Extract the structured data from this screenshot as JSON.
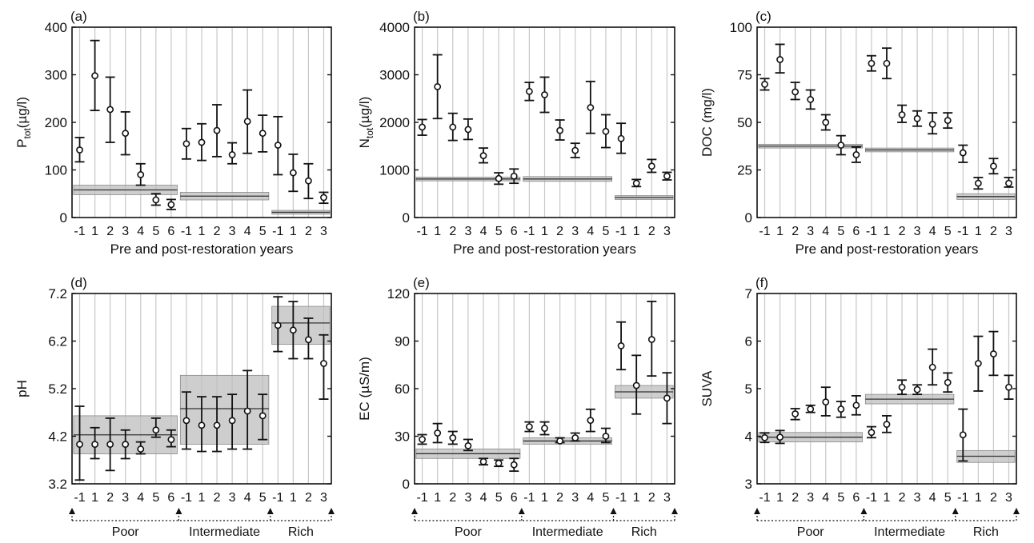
{
  "figure": {
    "groups": [
      "Poor",
      "Intermediate",
      "Rich"
    ],
    "xlabel": "Pre and post-restoration years"
  },
  "chart_data": [
    {
      "panel": "(a)",
      "type": "scatter",
      "ylabel": "P",
      "ylabel_sub": "tot",
      "ylabel_unit": "(µg/l)",
      "xlabel": "Pre and post-restoration years",
      "ylim": [
        0,
        400
      ],
      "yticks": [
        0,
        100,
        200,
        300,
        400
      ],
      "x_categories": [
        "-1",
        "1",
        "2",
        "3",
        "4",
        "5",
        "6",
        "-1",
        "1",
        "2",
        "3",
        "4",
        "5",
        "-1",
        "1",
        "2",
        "3"
      ],
      "values": [
        142,
        298,
        227,
        177,
        90,
        37,
        27,
        155,
        158,
        183,
        132,
        202,
        177,
        152,
        94,
        77,
        42
      ],
      "err_low": [
        117,
        225,
        158,
        132,
        68,
        26,
        17,
        123,
        120,
        128,
        113,
        135,
        138,
        90,
        55,
        40,
        30
      ],
      "err_high": [
        168,
        372,
        295,
        222,
        113,
        50,
        38,
        187,
        197,
        237,
        157,
        268,
        215,
        212,
        133,
        113,
        53
      ],
      "reference_bands": [
        {
          "group": "Poor",
          "mean": 58,
          "low": 48,
          "high": 68
        },
        {
          "group": "Intermediate",
          "mean": 45,
          "low": 37,
          "high": 53
        },
        {
          "group": "Rich",
          "mean": 11,
          "low": 7,
          "high": 15
        }
      ]
    },
    {
      "panel": "(b)",
      "type": "scatter",
      "ylabel": "N",
      "ylabel_sub": "tot",
      "ylabel_unit": "(µg/l)",
      "xlabel": "Pre and post-restoration years",
      "ylim": [
        0,
        4000
      ],
      "yticks": [
        0,
        1000,
        2000,
        3000,
        4000
      ],
      "x_categories": [
        "-1",
        "1",
        "2",
        "3",
        "4",
        "5",
        "6",
        "-1",
        "1",
        "2",
        "3",
        "4",
        "5",
        "-1",
        "1",
        "2",
        "3"
      ],
      "values": [
        1900,
        2750,
        1900,
        1850,
        1300,
        820,
        870,
        2650,
        2580,
        1830,
        1410,
        2310,
        1810,
        1660,
        720,
        1080,
        870
      ],
      "err_low": [
        1730,
        2080,
        1620,
        1640,
        1150,
        700,
        720,
        2460,
        2210,
        1630,
        1260,
        1770,
        1470,
        1350,
        650,
        950,
        790
      ],
      "err_high": [
        2060,
        3420,
        2190,
        2070,
        1460,
        940,
        1020,
        2840,
        2950,
        2050,
        1560,
        2860,
        2160,
        1980,
        800,
        1220,
        950
      ],
      "reference_bands": [
        {
          "group": "Poor",
          "mean": 810,
          "low": 770,
          "high": 850
        },
        {
          "group": "Intermediate",
          "mean": 810,
          "low": 760,
          "high": 860
        },
        {
          "group": "Rich",
          "mean": 420,
          "low": 380,
          "high": 460
        }
      ]
    },
    {
      "panel": "(c)",
      "type": "scatter",
      "ylabel": "DOC (mg/l)",
      "xlabel": "Pre and post-restoration years",
      "ylim": [
        0,
        100
      ],
      "yticks": [
        0,
        25,
        50,
        75,
        100
      ],
      "x_categories": [
        "-1",
        "1",
        "2",
        "3",
        "4",
        "5",
        "6",
        "-1",
        "1",
        "2",
        "3",
        "4",
        "5",
        "-1",
        "1",
        "2",
        "3"
      ],
      "values": [
        70,
        83,
        66,
        62,
        50,
        38,
        33,
        81,
        81,
        54,
        52,
        49,
        51,
        34,
        18,
        27,
        18
      ],
      "err_low": [
        67,
        76,
        62,
        57,
        46,
        33,
        29,
        77,
        73,
        50,
        48,
        44,
        47,
        29,
        15,
        23,
        16
      ],
      "err_high": [
        73,
        91,
        71,
        67,
        54,
        43,
        37,
        85,
        89,
        59,
        56,
        55,
        55,
        38,
        21,
        31,
        21
      ],
      "reference_bands": [
        {
          "group": "Poor",
          "mean": 37.5,
          "low": 36.5,
          "high": 38.5
        },
        {
          "group": "Intermediate",
          "mean": 35.5,
          "low": 34.5,
          "high": 36.5
        },
        {
          "group": "Rich",
          "mean": 11,
          "low": 9.5,
          "high": 12.5
        }
      ]
    },
    {
      "panel": "(d)",
      "type": "scatter",
      "ylabel": "pH",
      "ylim": [
        3.2,
        7.2
      ],
      "yticks": [
        3.2,
        4.2,
        5.2,
        6.2,
        7.2
      ],
      "x_categories": [
        "-1",
        "1",
        "2",
        "3",
        "4",
        "5",
        "6",
        "-1",
        "1",
        "2",
        "3",
        "4",
        "5",
        "-1",
        "1",
        "2",
        "3"
      ],
      "values": [
        4.03,
        4.03,
        4.03,
        4.03,
        3.93,
        4.33,
        4.13,
        4.53,
        4.43,
        4.43,
        4.53,
        4.73,
        4.63,
        6.53,
        6.43,
        6.23,
        5.73
      ],
      "err_low": [
        3.28,
        3.73,
        3.48,
        3.73,
        3.83,
        4.18,
        3.98,
        3.93,
        3.88,
        3.88,
        3.93,
        3.93,
        4.13,
        5.98,
        5.83,
        5.83,
        4.98
      ],
      "err_high": [
        4.83,
        4.38,
        4.58,
        4.33,
        4.08,
        4.58,
        4.33,
        5.13,
        5.03,
        5.03,
        5.08,
        5.58,
        5.08,
        7.13,
        7.03,
        6.68,
        6.33
      ],
      "reference_bands": [
        {
          "group": "Poor",
          "mean": 4.23,
          "low": 3.83,
          "high": 4.63
        },
        {
          "group": "Intermediate",
          "mean": 4.78,
          "low": 4.03,
          "high": 5.48
        },
        {
          "group": "Rich",
          "mean": 6.58,
          "low": 6.13,
          "high": 6.93
        }
      ]
    },
    {
      "panel": "(e)",
      "type": "scatter",
      "ylabel": "EC (µS/m)",
      "ylim": [
        0,
        120
      ],
      "yticks": [
        0,
        30,
        60,
        90,
        120
      ],
      "x_categories": [
        "-1",
        "1",
        "2",
        "3",
        "4",
        "5",
        "6",
        "-1",
        "1",
        "2",
        "3",
        "4",
        "5",
        "-1",
        "1",
        "2",
        "3"
      ],
      "values": [
        28,
        32,
        29,
        24,
        14,
        13,
        12,
        36,
        35,
        27,
        29,
        40,
        30,
        87,
        62,
        91,
        54
      ],
      "err_low": [
        25,
        26,
        25,
        21,
        12,
        11,
        8,
        33,
        31,
        26,
        27,
        33,
        26,
        72,
        44,
        68,
        38
      ],
      "err_high": [
        31,
        38,
        33,
        28,
        16,
        15,
        16,
        39,
        39,
        29,
        32,
        47,
        35,
        102,
        81,
        115,
        70
      ],
      "reference_bands": [
        {
          "group": "Poor",
          "mean": 19,
          "low": 16,
          "high": 22
        },
        {
          "group": "Intermediate",
          "mean": 27,
          "low": 25,
          "high": 29
        },
        {
          "group": "Rich",
          "mean": 58,
          "low": 54,
          "high": 62
        }
      ]
    },
    {
      "panel": "(f)",
      "type": "scatter",
      "ylabel": "SUVA",
      "ylim": [
        3,
        7
      ],
      "yticks": [
        3,
        4,
        5,
        6,
        7
      ],
      "x_categories": [
        "-1",
        "1",
        "2",
        "3",
        "4",
        "5",
        "6",
        "-1",
        "1",
        "2",
        "3",
        "4",
        "5",
        "-1",
        "1",
        "2",
        "3"
      ],
      "values": [
        3.97,
        3.98,
        4.47,
        4.57,
        4.72,
        4.57,
        4.65,
        4.08,
        4.25,
        5.03,
        4.98,
        5.45,
        5.13,
        4.03,
        5.53,
        5.73,
        5.03
      ],
      "err_low": [
        3.87,
        3.85,
        4.35,
        4.5,
        4.43,
        4.4,
        4.45,
        3.97,
        4.08,
        4.88,
        4.88,
        5.08,
        4.93,
        3.48,
        4.95,
        5.28,
        4.78
      ],
      "err_high": [
        4.07,
        4.12,
        4.58,
        4.65,
        5.03,
        4.73,
        4.85,
        4.2,
        4.43,
        5.18,
        5.08,
        5.83,
        5.33,
        4.57,
        6.1,
        6.2,
        5.28
      ],
      "reference_bands": [
        {
          "group": "Poor",
          "mean": 3.98,
          "low": 3.88,
          "high": 4.08
        },
        {
          "group": "Intermediate",
          "mean": 4.78,
          "low": 4.68,
          "high": 4.88
        },
        {
          "group": "Rich",
          "mean": 3.58,
          "low": 3.45,
          "high": 3.7
        }
      ]
    }
  ]
}
